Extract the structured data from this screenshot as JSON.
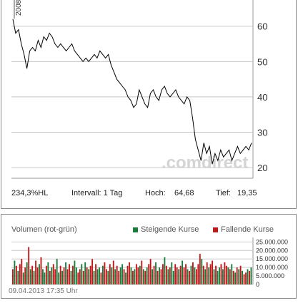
{
  "price_chart": {
    "chart_data": {
      "type": "line",
      "title": "",
      "x_start_label": "2008",
      "ylim": [
        17,
        67
      ],
      "yticks": [
        20,
        30,
        40,
        50,
        60
      ],
      "values": [
        62,
        58,
        59,
        55,
        52,
        48,
        53,
        54,
        53,
        56,
        54,
        57,
        56,
        58,
        57,
        55,
        54,
        55,
        54,
        53,
        54,
        55,
        53,
        52,
        51,
        50,
        51,
        50,
        51,
        52,
        51,
        53,
        52,
        51,
        52,
        49,
        47,
        45,
        44,
        43,
        42,
        40,
        39,
        37,
        38,
        42,
        40,
        38,
        37,
        41,
        42,
        40,
        39,
        42,
        43,
        41,
        40,
        41,
        42,
        40,
        39,
        38,
        40,
        39,
        34,
        28,
        25,
        22,
        27,
        24,
        26,
        21,
        24,
        22,
        25,
        23,
        24,
        25,
        22,
        24,
        26,
        24,
        25,
        26,
        25,
        27
      ],
      "line_color": "#000000",
      "grid": true,
      "watermark": ".comdirect"
    },
    "stats": {
      "change": "234,3%HL",
      "interval_label": "Intervall: 1 Tag",
      "high_label": "Hoch:",
      "high_value": "64,68",
      "low_label": "Tief:",
      "low_value": "19,35"
    }
  },
  "volume_chart": {
    "title": "Volumen (rot-grün)",
    "legend": [
      {
        "label": "Steigende Kurse",
        "color": "#1a7a3a"
      },
      {
        "label": "Fallende Kurse",
        "color": "#c01818"
      }
    ],
    "chart_data": {
      "type": "bar",
      "ylim": [
        0,
        26000000
      ],
      "yticks": [
        "25.000.000",
        "20.000.000",
        "15.000.000",
        "10.000.000",
        "5.000.000",
        "0"
      ],
      "ytick_values": [
        25000000,
        20000000,
        15000000,
        10000000,
        5000000,
        0
      ],
      "values": [
        9,
        14,
        11,
        8,
        12,
        15,
        7,
        10,
        13,
        22,
        9,
        11,
        8,
        14,
        10,
        12,
        16,
        9,
        7,
        11,
        13,
        8,
        10,
        12,
        9,
        15,
        7,
        11,
        8,
        10,
        13,
        9,
        12,
        8,
        11,
        14,
        10,
        7,
        9,
        12,
        8,
        13,
        10,
        9,
        11,
        15,
        8,
        12,
        9,
        10,
        7,
        11,
        13,
        9,
        8,
        12,
        10,
        14,
        9,
        11,
        8,
        10,
        12,
        9,
        7,
        11,
        13,
        10,
        8,
        9,
        12,
        10,
        11,
        14,
        9,
        8,
        10,
        12,
        15,
        9,
        11,
        13,
        8,
        10,
        9,
        12,
        16,
        11,
        9,
        10,
        13,
        8,
        12,
        10,
        9,
        11,
        14,
        10,
        12,
        9,
        8,
        11,
        13,
        10,
        9,
        12,
        18,
        15,
        11,
        9,
        13,
        10,
        12,
        14,
        9,
        11,
        8,
        10,
        12,
        9,
        13,
        11,
        10,
        9,
        12,
        8,
        7,
        10,
        9,
        11,
        8,
        6,
        7,
        9,
        8,
        10
      ],
      "rising": [
        0,
        1,
        0,
        1,
        0,
        0,
        1,
        0,
        1,
        0,
        1,
        0,
        1,
        0,
        0,
        1,
        0,
        1,
        1,
        0,
        1,
        0,
        1,
        0,
        0,
        1,
        1,
        0,
        1,
        0,
        1,
        0,
        0,
        1,
        0,
        1,
        1,
        0,
        0,
        1,
        0,
        1,
        0,
        1,
        0,
        0,
        1,
        0,
        1,
        1,
        0,
        1,
        0,
        0,
        1,
        0,
        1,
        0,
        1,
        0,
        0,
        1,
        1,
        0,
        1,
        0,
        0,
        1,
        0,
        1,
        0,
        0,
        1,
        0,
        1,
        0,
        1,
        0,
        0,
        1,
        0,
        1,
        0,
        1,
        0,
        0,
        1,
        0,
        1,
        0,
        1,
        1,
        0,
        0,
        1,
        0,
        1,
        0,
        0,
        1,
        0,
        1,
        0,
        1,
        0,
        0,
        0,
        1,
        0,
        1,
        0,
        1,
        0,
        0,
        1,
        0,
        1,
        1,
        0,
        1,
        0,
        0,
        1,
        0,
        1,
        0,
        1,
        0,
        1,
        0,
        1,
        0,
        0,
        1,
        0,
        1
      ],
      "grid": true
    },
    "timestamp": "09.04.2013 17:35 Uhr"
  }
}
